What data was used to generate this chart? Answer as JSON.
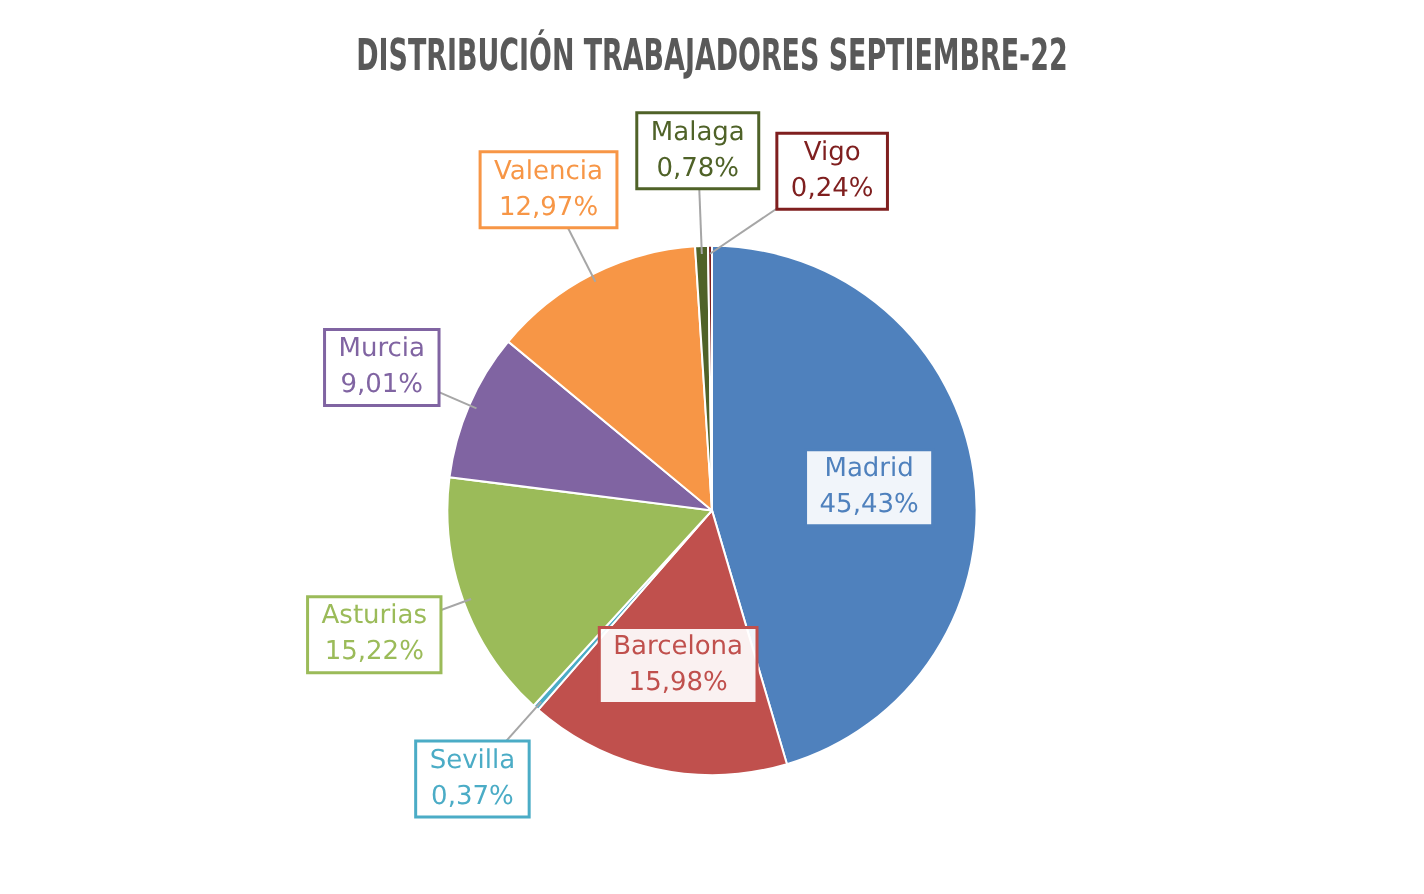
{
  "chart_data": {
    "type": "pie",
    "title": "DISTRIBUCIÓN TRABAJADORES SEPTIEMBRE-22",
    "categories": [
      "Madrid",
      "Barcelona",
      "Sevilla",
      "Asturias",
      "Murcia",
      "Valencia",
      "Malaga",
      "Vigo"
    ],
    "values": [
      45.43,
      15.98,
      0.37,
      15.22,
      9.01,
      12.97,
      0.78,
      0.24
    ],
    "value_labels": [
      "45,43%",
      "15,98%",
      "0,37%",
      "15,22%",
      "9,01%",
      "12,97%",
      "0,78%",
      "0,24%"
    ],
    "colors": [
      "#4f81bd",
      "#c0504d",
      "#4bacc6",
      "#9bbb59",
      "#8064a2",
      "#f79646",
      "#4f6228",
      "#7f1f1f"
    ],
    "legend": false
  }
}
